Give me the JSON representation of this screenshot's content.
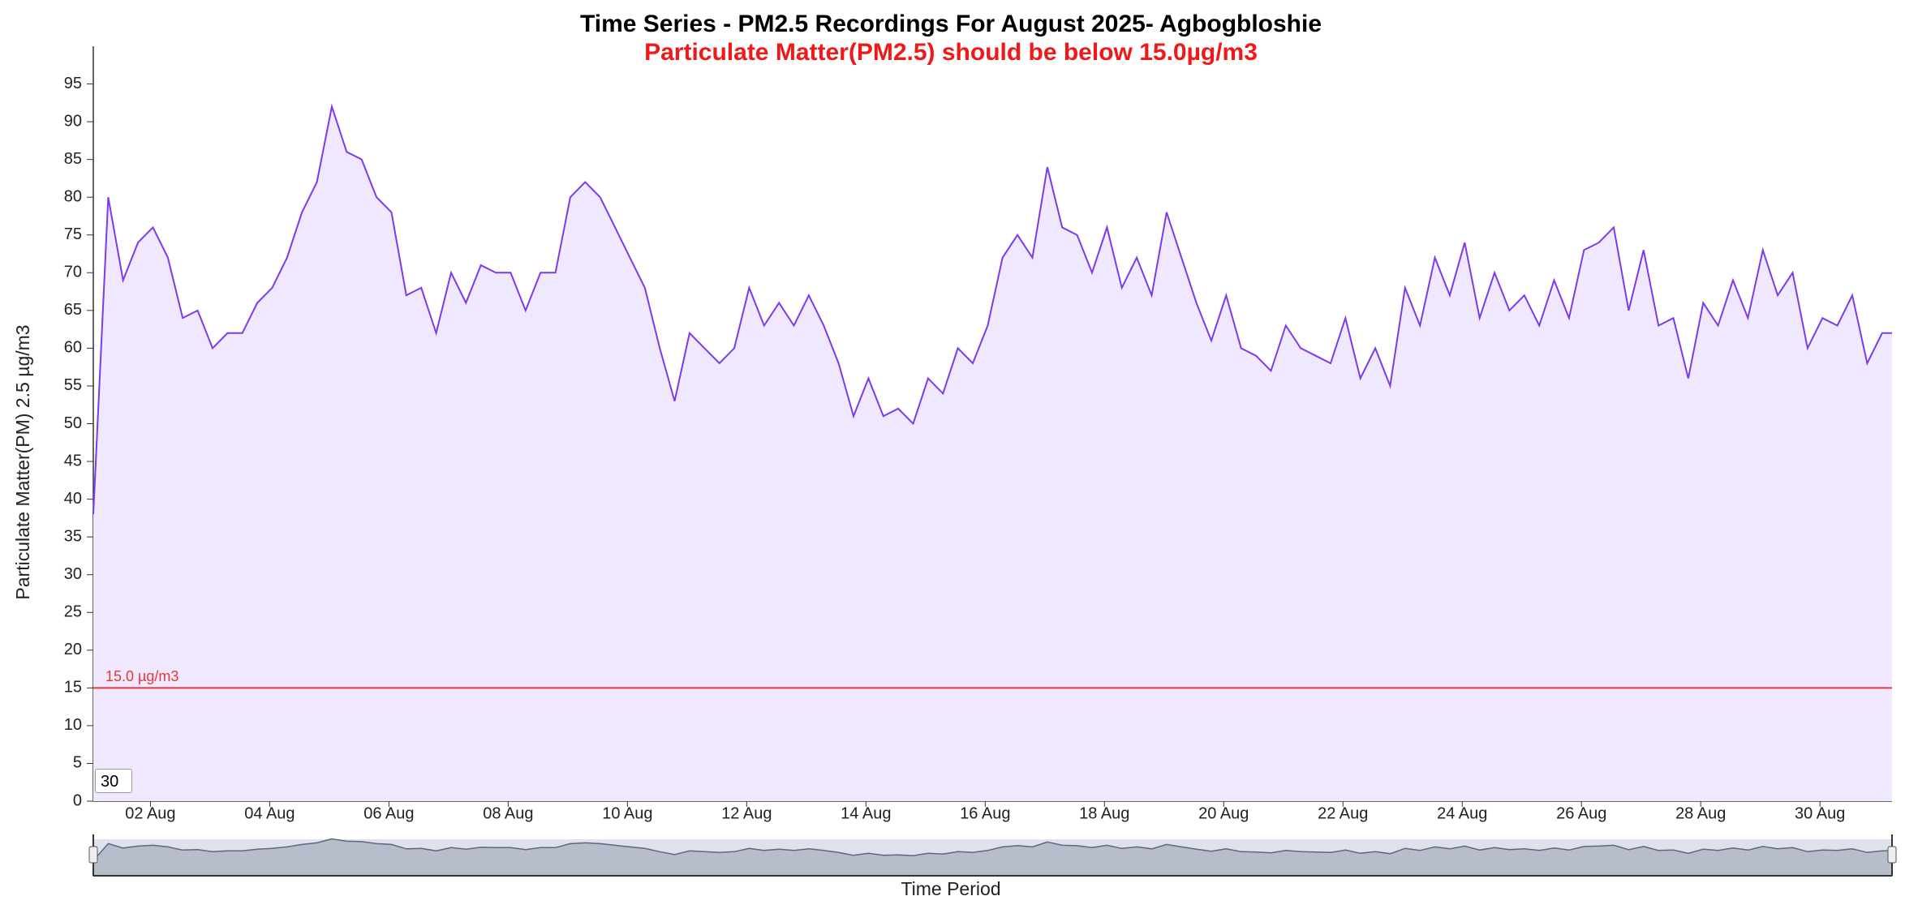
{
  "chart_data": {
    "type": "area",
    "title": "Time Series - PM2.5 Recordings For August 2025- Agbogbloshie",
    "subtitle": "Particulate Matter(PM2.5) should be below 15.0µg/m3",
    "x_label": "Time Period",
    "y_label": "Particulate Matter(PM) 2.5 µg/m3",
    "input_value": "30",
    "x": [
      "2025-08-01 01:00",
      "2025-08-01 07:00",
      "2025-08-01 13:00",
      "2025-08-01 19:00",
      "2025-08-02 01:00",
      "2025-08-02 07:00",
      "2025-08-02 13:00",
      "2025-08-02 19:00",
      "2025-08-03 01:00",
      "2025-08-03 07:00",
      "2025-08-03 13:00",
      "2025-08-03 19:00",
      "2025-08-04 01:00",
      "2025-08-04 07:00",
      "2025-08-04 13:00",
      "2025-08-04 19:00",
      "2025-08-05 01:00",
      "2025-08-05 07:00",
      "2025-08-05 13:00",
      "2025-08-05 19:00",
      "2025-08-06 01:00",
      "2025-08-06 07:00",
      "2025-08-06 13:00",
      "2025-08-06 19:00",
      "2025-08-07 01:00",
      "2025-08-07 07:00",
      "2025-08-07 13:00",
      "2025-08-07 19:00",
      "2025-08-08 01:00",
      "2025-08-08 07:00",
      "2025-08-08 13:00",
      "2025-08-08 19:00",
      "2025-08-09 01:00",
      "2025-08-09 07:00",
      "2025-08-09 13:00",
      "2025-08-09 19:00",
      "2025-08-10 01:00",
      "2025-08-10 07:00",
      "2025-08-10 13:00",
      "2025-08-10 19:00",
      "2025-08-11 01:00",
      "2025-08-11 07:00",
      "2025-08-11 13:00",
      "2025-08-11 19:00",
      "2025-08-12 01:00",
      "2025-08-12 07:00",
      "2025-08-12 13:00",
      "2025-08-12 19:00",
      "2025-08-13 01:00",
      "2025-08-13 07:00",
      "2025-08-13 13:00",
      "2025-08-13 19:00",
      "2025-08-14 01:00",
      "2025-08-14 07:00",
      "2025-08-14 13:00",
      "2025-08-14 19:00",
      "2025-08-15 01:00",
      "2025-08-15 07:00",
      "2025-08-15 13:00",
      "2025-08-15 19:00",
      "2025-08-16 01:00",
      "2025-08-16 07:00",
      "2025-08-16 13:00",
      "2025-08-16 19:00",
      "2025-08-17 01:00",
      "2025-08-17 07:00",
      "2025-08-17 13:00",
      "2025-08-17 19:00",
      "2025-08-18 01:00",
      "2025-08-18 07:00",
      "2025-08-18 13:00",
      "2025-08-18 19:00",
      "2025-08-19 01:00",
      "2025-08-19 07:00",
      "2025-08-19 13:00",
      "2025-08-19 19:00",
      "2025-08-20 01:00",
      "2025-08-20 07:00",
      "2025-08-20 13:00",
      "2025-08-20 19:00",
      "2025-08-21 01:00",
      "2025-08-21 07:00",
      "2025-08-21 13:00",
      "2025-08-21 19:00",
      "2025-08-22 01:00",
      "2025-08-22 07:00",
      "2025-08-22 13:00",
      "2025-08-22 19:00",
      "2025-08-23 01:00",
      "2025-08-23 07:00",
      "2025-08-23 13:00",
      "2025-08-23 19:00",
      "2025-08-24 01:00",
      "2025-08-24 07:00",
      "2025-08-24 13:00",
      "2025-08-24 19:00",
      "2025-08-25 01:00",
      "2025-08-25 07:00",
      "2025-08-25 13:00",
      "2025-08-25 19:00",
      "2025-08-26 01:00",
      "2025-08-26 07:00",
      "2025-08-26 13:00",
      "2025-08-26 19:00",
      "2025-08-27 01:00",
      "2025-08-27 07:00",
      "2025-08-27 13:00",
      "2025-08-27 19:00",
      "2025-08-28 01:00",
      "2025-08-28 07:00",
      "2025-08-28 13:00",
      "2025-08-28 19:00",
      "2025-08-29 01:00",
      "2025-08-29 07:00",
      "2025-08-29 13:00",
      "2025-08-29 19:00",
      "2025-08-30 01:00",
      "2025-08-30 07:00",
      "2025-08-30 13:00",
      "2025-08-30 19:00",
      "2025-08-31 01:00",
      "2025-08-31 05:00"
    ],
    "series": [
      {
        "name": "PM2.5",
        "color": "#7c3aed",
        "fill": "#f0e8fe",
        "values": [
          38,
          80,
          69,
          74,
          76,
          72,
          64,
          65,
          60,
          62,
          62,
          66,
          68,
          72,
          78,
          82,
          92,
          86,
          85,
          80,
          78,
          67,
          68,
          62,
          70,
          66,
          71,
          70,
          70,
          65,
          70,
          70,
          80,
          82,
          80,
          76,
          72,
          68,
          60,
          53,
          62,
          60,
          58,
          60,
          68,
          63,
          66,
          63,
          67,
          63,
          58,
          51,
          56,
          51,
          52,
          50,
          56,
          54,
          60,
          58,
          63,
          72,
          75,
          72,
          84,
          76,
          75,
          70,
          76,
          68,
          72,
          67,
          78,
          72,
          66,
          61,
          67,
          60,
          59,
          57,
          63,
          60,
          59,
          58,
          64,
          56,
          60,
          55,
          68,
          63,
          72,
          67,
          74,
          64,
          70,
          65,
          67,
          63,
          69,
          64,
          73,
          74,
          76,
          65,
          73,
          63,
          64,
          56,
          66,
          63,
          69,
          64,
          73,
          67,
          70,
          60,
          64,
          63,
          67,
          58,
          62,
          62
        ]
      }
    ],
    "threshold": {
      "value": 15,
      "label": "15.0 µg/m3",
      "color": "#e53935"
    },
    "xlim": [
      "2025-08-01 01:00",
      "2025-08-31 05:00"
    ],
    "xticks": [
      {
        "value": "2025-08-02 00:00",
        "label": "02 Aug"
      },
      {
        "value": "2025-08-04 00:00",
        "label": "04 Aug"
      },
      {
        "value": "2025-08-06 00:00",
        "label": "06 Aug"
      },
      {
        "value": "2025-08-08 00:00",
        "label": "08 Aug"
      },
      {
        "value": "2025-08-10 00:00",
        "label": "10 Aug"
      },
      {
        "value": "2025-08-12 00:00",
        "label": "12 Aug"
      },
      {
        "value": "2025-08-14 00:00",
        "label": "14 Aug"
      },
      {
        "value": "2025-08-16 00:00",
        "label": "16 Aug"
      },
      {
        "value": "2025-08-18 00:00",
        "label": "18 Aug"
      },
      {
        "value": "2025-08-20 00:00",
        "label": "20 Aug"
      },
      {
        "value": "2025-08-22 00:00",
        "label": "22 Aug"
      },
      {
        "value": "2025-08-24 00:00",
        "label": "24 Aug"
      },
      {
        "value": "2025-08-26 00:00",
        "label": "26 Aug"
      },
      {
        "value": "2025-08-28 00:00",
        "label": "28 Aug"
      },
      {
        "value": "2025-08-30 00:00",
        "label": "30 Aug"
      }
    ],
    "ylim": [
      0,
      100
    ],
    "yticks": [
      0,
      5,
      10,
      15,
      20,
      25,
      30,
      35,
      40,
      45,
      50,
      55,
      60,
      65,
      70,
      75,
      80,
      85,
      90,
      95
    ]
  }
}
